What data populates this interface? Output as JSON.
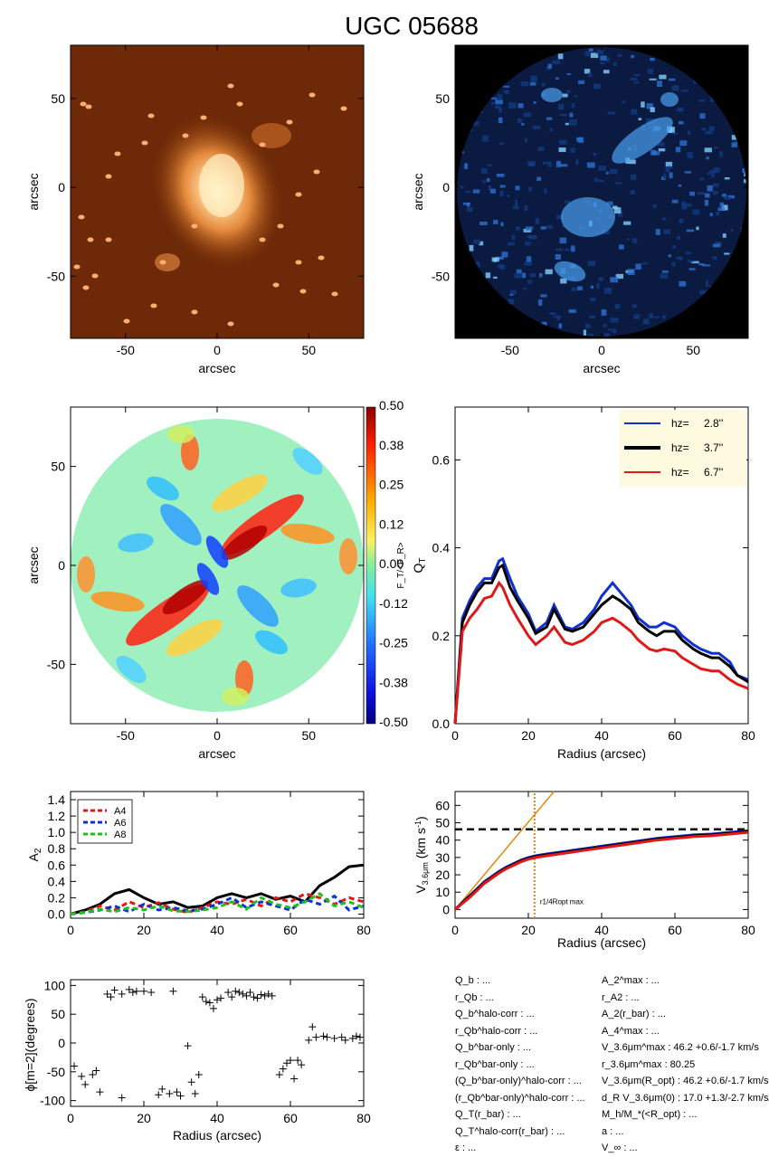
{
  "title": "UGC 05688",
  "colors": {
    "image_bg": "#6e2a08",
    "blue": "#1030d0",
    "black": "#000000",
    "red": "#e01818",
    "green": "#20c020",
    "orange": "#e08a10",
    "legend_bg": "#fdfae0"
  },
  "chart_data": [
    {
      "type": "image",
      "name": "optical",
      "xlabel": "arcsec",
      "ylabel": "arcsec",
      "xlim": [
        -80,
        80
      ],
      "ylim": [
        -85,
        80
      ],
      "xticks": [
        "-50",
        "0",
        "50"
      ],
      "yticks": [
        "50",
        "0",
        "-50"
      ],
      "colormap": "orange-hot"
    },
    {
      "type": "image",
      "name": "nir",
      "xlabel": "arcsec",
      "ylabel": "arcsec",
      "xlim": [
        -80,
        80
      ],
      "ylim": [
        -85,
        80
      ],
      "xticks": [
        "-50",
        "0",
        "50"
      ],
      "yticks": [
        "50",
        "0",
        "-50"
      ],
      "colormap": "blue"
    },
    {
      "type": "heatmap",
      "name": "force-ratio",
      "xlabel": "arcsec",
      "ylabel": "arcsec",
      "xlim": [
        -80,
        80
      ],
      "ylim": [
        -80,
        80
      ],
      "xticks": [
        "-50",
        "0",
        "50"
      ],
      "yticks": [
        "50",
        "0",
        "-50"
      ],
      "colorbar_ticks": [
        "0.50",
        "0.38",
        "0.25",
        "0.12",
        "0.00",
        "-0.12",
        "-0.25",
        "-0.38",
        "-0.50"
      ],
      "colorbar_label": "F_T/<F_R>"
    },
    {
      "type": "line",
      "name": "qt-profile",
      "xlabel": "Radius (arcsec)",
      "ylabel": "Q_T",
      "xlim": [
        0,
        80
      ],
      "ylim": [
        0,
        0.72
      ],
      "xticks": [
        "0",
        "20",
        "40",
        "60",
        "80"
      ],
      "yticks": [
        "0.0",
        "0.2",
        "0.4",
        "0.6"
      ],
      "legend": {
        "placement": "top-right",
        "entries": [
          {
            "label": "h_z=",
            "value": "2.8''",
            "color": "#1030d0"
          },
          {
            "label": "h_z=",
            "value": "3.7''",
            "color": "#000000"
          },
          {
            "label": "h_z=",
            "value": "6.7''",
            "color": "#e01818"
          }
        ]
      },
      "x": [
        0,
        2,
        4,
        6,
        8,
        10,
        12,
        13,
        15,
        17,
        20,
        22,
        25,
        27,
        30,
        32,
        35,
        38,
        40,
        43,
        45,
        48,
        50,
        53,
        55,
        57,
        60,
        62,
        65,
        67,
        70,
        72,
        75,
        77,
        80
      ],
      "series": [
        {
          "name": "2.8''",
          "values": [
            0,
            0.24,
            0.28,
            0.31,
            0.33,
            0.33,
            0.37,
            0.375,
            0.33,
            0.29,
            0.25,
            0.21,
            0.23,
            0.27,
            0.22,
            0.215,
            0.23,
            0.26,
            0.29,
            0.32,
            0.3,
            0.27,
            0.24,
            0.22,
            0.22,
            0.23,
            0.22,
            0.2,
            0.18,
            0.17,
            0.16,
            0.16,
            0.14,
            0.11,
            0.1
          ]
        },
        {
          "name": "3.7''",
          "values": [
            0,
            0.23,
            0.27,
            0.3,
            0.32,
            0.32,
            0.355,
            0.36,
            0.31,
            0.28,
            0.24,
            0.205,
            0.22,
            0.26,
            0.215,
            0.21,
            0.22,
            0.25,
            0.27,
            0.29,
            0.28,
            0.26,
            0.23,
            0.21,
            0.2,
            0.21,
            0.21,
            0.19,
            0.17,
            0.16,
            0.15,
            0.15,
            0.13,
            0.11,
            0.095
          ]
        },
        {
          "name": "6.7''",
          "values": [
            0,
            0.21,
            0.24,
            0.26,
            0.285,
            0.29,
            0.32,
            0.31,
            0.27,
            0.24,
            0.2,
            0.18,
            0.2,
            0.22,
            0.185,
            0.18,
            0.19,
            0.21,
            0.23,
            0.24,
            0.23,
            0.21,
            0.19,
            0.17,
            0.165,
            0.17,
            0.165,
            0.15,
            0.135,
            0.125,
            0.12,
            0.12,
            0.1,
            0.09,
            0.08
          ]
        }
      ]
    },
    {
      "type": "line",
      "name": "fourier-amplitudes",
      "xlabel": "",
      "ylabel": "A_2",
      "xlim": [
        0,
        80
      ],
      "ylim": [
        -0.05,
        1.5
      ],
      "xticks": [
        "0",
        "20",
        "40",
        "60",
        "80"
      ],
      "yticks": [
        "1.4",
        "1.2",
        "1.0",
        "0.8",
        "0.6",
        "0.4",
        "0.2",
        "0.0"
      ],
      "legend": {
        "placement": "top-left",
        "entries": [
          {
            "label": "A_4",
            "color": "#e01818"
          },
          {
            "label": "A_6",
            "color": "#1030d0"
          },
          {
            "label": "A_8",
            "color": "#20c020"
          }
        ]
      },
      "x": [
        0,
        4,
        8,
        12,
        16,
        20,
        24,
        28,
        32,
        36,
        40,
        44,
        48,
        52,
        56,
        60,
        64,
        68,
        72,
        76,
        80
      ],
      "series": [
        {
          "name": "A_2",
          "values": [
            0,
            0.05,
            0.12,
            0.25,
            0.3,
            0.2,
            0.12,
            0.15,
            0.08,
            0.1,
            0.2,
            0.25,
            0.2,
            0.25,
            0.18,
            0.22,
            0.15,
            0.35,
            0.45,
            0.58,
            0.6
          ]
        },
        {
          "name": "A_4",
          "values": [
            0,
            0.03,
            0.1,
            0.05,
            0.15,
            0.08,
            0.14,
            0.06,
            0.02,
            0.08,
            0.15,
            0.12,
            0.18,
            0.1,
            0.2,
            0.15,
            0.25,
            0.2,
            0.12,
            0.2,
            0.15
          ]
        },
        {
          "name": "A_6",
          "values": [
            0,
            0.02,
            0.05,
            0.1,
            0.03,
            0.12,
            0.05,
            0.08,
            0.04,
            0.06,
            0.12,
            0.2,
            0.08,
            0.15,
            0.1,
            0.05,
            0.18,
            0.12,
            0.22,
            0.05,
            0.1
          ]
        },
        {
          "name": "A_8",
          "values": [
            0,
            0.02,
            0.06,
            0.03,
            0.08,
            0.05,
            0.1,
            0.04,
            0.03,
            0.05,
            0.08,
            0.15,
            0.06,
            0.2,
            0.12,
            0.08,
            0.15,
            0.25,
            0.1,
            0.15,
            0.08
          ]
        }
      ]
    },
    {
      "type": "line",
      "name": "rotation-curve",
      "xlabel": "Radius (arcsec)",
      "ylabel": "V_3.6μm (km s⁻¹)",
      "xlim": [
        0,
        80
      ],
      "ylim": [
        -5,
        68
      ],
      "xticks": [
        "0",
        "20",
        "40",
        "60",
        "80"
      ],
      "yticks": [
        "60",
        "50",
        "40",
        "30",
        "20",
        "10",
        "0"
      ],
      "annotation": "r_max^1/4R_opt",
      "vline_x": 21.7,
      "hline_y": 46.2,
      "x": [
        0,
        2,
        4,
        6,
        8,
        10,
        12,
        14,
        16,
        18,
        20,
        22,
        25,
        30,
        35,
        40,
        45,
        50,
        55,
        60,
        65,
        70,
        75,
        80
      ],
      "series": [
        {
          "name": "blue",
          "values": [
            0,
            4,
            8,
            12,
            16,
            19,
            22,
            24.5,
            26.5,
            28.5,
            30,
            31,
            32,
            33.5,
            35,
            36.5,
            38,
            39.5,
            41,
            42,
            43,
            43.5,
            44.5,
            45.5
          ]
        },
        {
          "name": "black",
          "values": [
            0,
            3.8,
            7.6,
            11.5,
            15.5,
            18.5,
            21.5,
            24,
            26,
            28,
            29.5,
            30.5,
            31.5,
            33,
            34.5,
            36,
            37.5,
            39,
            40.5,
            41.5,
            42.5,
            43,
            44,
            45
          ]
        },
        {
          "name": "red",
          "values": [
            0,
            3.5,
            7,
            11,
            15,
            18,
            21,
            23.5,
            25.5,
            27.5,
            29,
            30,
            31,
            32.5,
            34,
            35.5,
            37,
            38.5,
            40,
            41,
            42,
            42.5,
            43.5,
            44.5
          ]
        }
      ]
    },
    {
      "type": "scatter",
      "name": "phase-profile",
      "xlabel": "Radius (arcsec)",
      "ylabel": "ϕ[m=2](degrees)",
      "xlim": [
        0,
        80
      ],
      "ylim": [
        -110,
        110
      ],
      "xticks": [
        "0",
        "20",
        "40",
        "60",
        "80"
      ],
      "yticks": [
        "100",
        "50",
        "0",
        "-50",
        "-100"
      ],
      "x": [
        1,
        3,
        4,
        6,
        7,
        8,
        10,
        11,
        12,
        14,
        14,
        16,
        17,
        18,
        20,
        22,
        24,
        25,
        27,
        28,
        29,
        30,
        32,
        33,
        34,
        35,
        36,
        37,
        38,
        39,
        40,
        41,
        43,
        44,
        45,
        46,
        47,
        48,
        49,
        50,
        51,
        52,
        53,
        54,
        55,
        57,
        58,
        59,
        60,
        61,
        62,
        63,
        65,
        66,
        67,
        69,
        70,
        72,
        74,
        75,
        77,
        78,
        79
      ],
      "y": [
        -40,
        -58,
        -72,
        -55,
        -48,
        -85,
        85,
        80,
        92,
        85,
        -95,
        93,
        88,
        90,
        90,
        88,
        -90,
        -80,
        -88,
        90,
        -85,
        -92,
        -5,
        -68,
        -88,
        -55,
        80,
        72,
        70,
        60,
        75,
        78,
        88,
        80,
        90,
        88,
        85,
        82,
        88,
        80,
        78,
        84,
        82,
        85,
        82,
        -55,
        -45,
        -35,
        -30,
        -62,
        -30,
        -38,
        5,
        28,
        10,
        12,
        10,
        8,
        10,
        5,
        8,
        12,
        10
      ]
    }
  ],
  "params": {
    "left": [
      "Q_b : ...",
      "r_Qb : ...",
      "Q_b^halo-corr : ...",
      "r_Qb^halo-corr : ...",
      "Q_b^bar-only : ...",
      "r_Qb^bar-only : ...",
      "(Q_b^bar-only)^halo-corr : ...",
      "(r_Qb^bar-only)^halo-corr : ...",
      "Q_T(r_bar) : ...",
      "Q_T^halo-corr(r_bar) : ...",
      "ε : ..."
    ],
    "right": [
      "A_2^max : ...",
      "r_A2 : ...",
      "A_2(r_bar) : ...",
      "A_4^max : ...",
      "V_3.6μm^max :  46.2 +0.6/-1.7 km/s",
      "r_3.6μm^max :  80.25",
      "V_3.6μm(R_opt) :  46.2 +0.6/-1.7 km/s",
      "d_R V_3.6μm(0) :  17.0 +1.3/-2.7 km/s/kpc",
      "M_h/M_*(<R_opt) : ...",
      "a : ...",
      "V_∞ : ..."
    ]
  }
}
